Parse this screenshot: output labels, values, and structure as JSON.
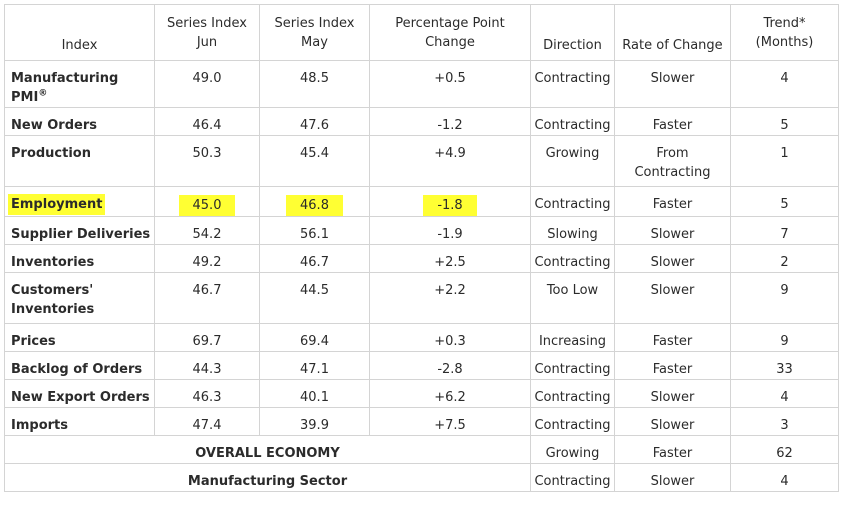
{
  "headers": {
    "index": "Index",
    "jun_line1": "Series Index",
    "jun_line2": "Jun",
    "may_line1": "Series Index",
    "may_line2": "May",
    "change_line1": "Percentage Point",
    "change_line2": "Change",
    "direction": "Direction",
    "rate": "Rate of Change",
    "trend_line1": "Trend*",
    "trend_line2": "(Months)"
  },
  "rows": [
    {
      "index": "Manufacturing PMI",
      "sup": "®",
      "jun": "49.0",
      "may": "48.5",
      "change": "+0.5",
      "direction": "Contracting",
      "rate": "Slower",
      "rate2": "",
      "trend": "4"
    },
    {
      "index": "New Orders",
      "jun": "46.4",
      "may": "47.6",
      "change": "-1.2",
      "direction": "Contracting",
      "rate": "Faster",
      "rate2": "",
      "trend": "5"
    },
    {
      "index": "Production",
      "jun": "50.3",
      "may": "45.4",
      "change": "+4.9",
      "direction": "Growing",
      "rate": "From",
      "rate2": "Contracting",
      "trend": "1"
    },
    {
      "index": "Employment",
      "jun": "45.0",
      "may": "46.8",
      "change": "-1.8",
      "direction": "Contracting",
      "rate": "Faster",
      "rate2": "",
      "trend": "5",
      "highlighted": true
    },
    {
      "index": "Supplier Deliveries",
      "jun": "54.2",
      "may": "56.1",
      "change": "-1.9",
      "direction": "Slowing",
      "rate": "Slower",
      "rate2": "",
      "trend": "7"
    },
    {
      "index": "Inventories",
      "jun": "49.2",
      "may": "46.7",
      "change": "+2.5",
      "direction": "Contracting",
      "rate": "Slower",
      "rate2": "",
      "trend": "2"
    },
    {
      "index": "Customers'",
      "index2": "Inventories",
      "jun": "46.7",
      "may": "44.5",
      "change": "+2.2",
      "direction": "Too Low",
      "rate": "Slower",
      "rate2": "",
      "trend": "9"
    },
    {
      "index": "Prices",
      "jun": "69.7",
      "may": "69.4",
      "change": "+0.3",
      "direction": "Increasing",
      "rate": "Faster",
      "rate2": "",
      "trend": "9"
    },
    {
      "index": "Backlog of Orders",
      "jun": "44.3",
      "may": "47.1",
      "change": "-2.8",
      "direction": "Contracting",
      "rate": "Faster",
      "rate2": "",
      "trend": "33"
    },
    {
      "index": "New Export Orders",
      "jun": "46.3",
      "may": "40.1",
      "change": "+6.2",
      "direction": "Contracting",
      "rate": "Slower",
      "rate2": "",
      "trend": "4"
    },
    {
      "index": "Imports",
      "jun": "47.4",
      "may": "39.9",
      "change": "+7.5",
      "direction": "Contracting",
      "rate": "Slower",
      "rate2": "",
      "trend": "3"
    }
  ],
  "summary": [
    {
      "label": "OVERALL ECONOMY",
      "direction": "Growing",
      "rate": "Faster",
      "trend": "62"
    },
    {
      "label": "Manufacturing Sector",
      "direction": "Contracting",
      "rate": "Slower",
      "trend": "4"
    }
  ],
  "colors": {
    "highlight": "#ffff33",
    "border": "#d4d4d4",
    "text": "#2b2b2b"
  }
}
